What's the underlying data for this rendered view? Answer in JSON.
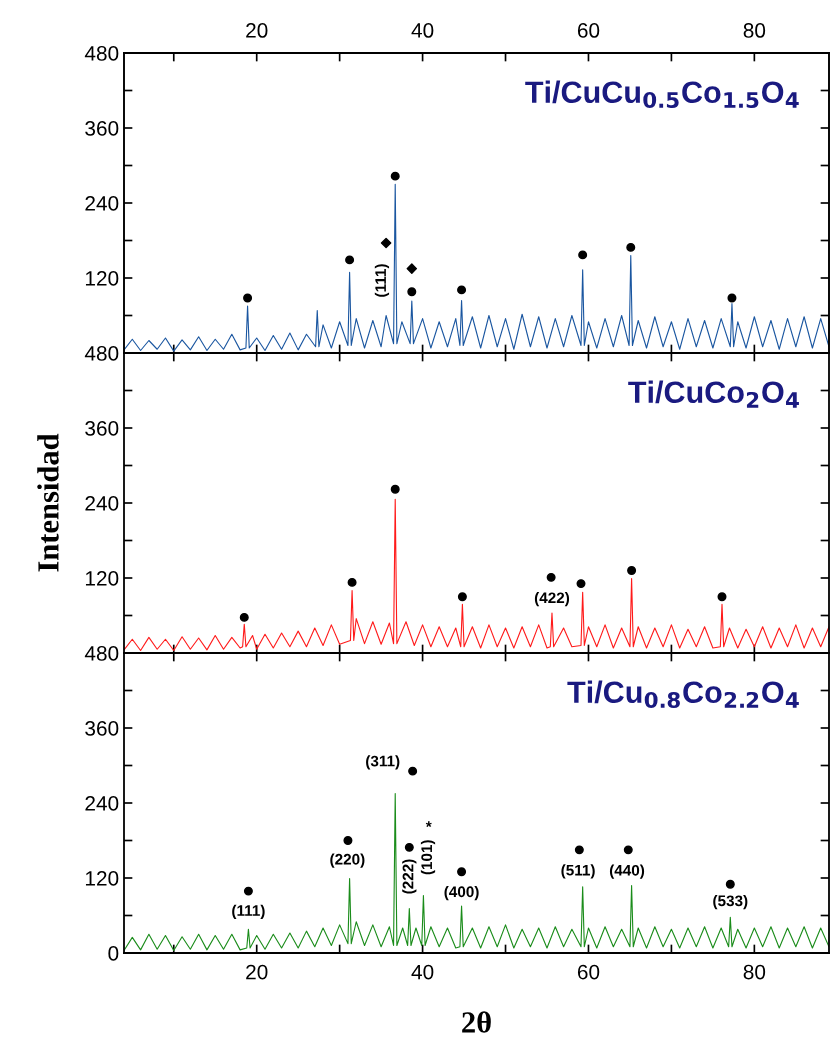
{
  "chart_data": [
    {
      "type": "line",
      "title": "Ti/CuCu$_{0.5}$Co$_{1.5}$O$_{4}$",
      "xlim": [
        4,
        89
      ],
      "x2lim": [
        4,
        89
      ],
      "x2ticks": [
        {
          "value": 10,
          "label": null
        },
        20,
        {
          "value": 30,
          "label": null
        },
        40,
        {
          "value": 50,
          "label": null
        },
        60,
        {
          "value": 70,
          "label": null
        },
        80
      ],
      "xticks": [
        {
          "value": 10,
          "label": null
        },
        {
          "value": 20,
          "label": null
        },
        {
          "value": 30,
          "label": null
        },
        {
          "value": 40,
          "label": null
        },
        {
          "value": 50,
          "label": null
        },
        {
          "value": 60,
          "label": null
        },
        {
          "value": 70,
          "label": null
        },
        {
          "value": 80,
          "label": null
        }
      ],
      "ylim": [
        0,
        480
      ],
      "yticks": [
        {
          "value": 0,
          "label": null
        },
        {
          "value": 60,
          "label": null
        },
        120,
        {
          "value": 180,
          "label": null
        },
        240,
        {
          "value": 300,
          "label": null
        },
        360,
        {
          "value": 420,
          "label": null
        },
        480
      ],
      "tick_labels": "y",
      "grid": false,
      "annotations": [
        {
          "text": "(111)",
          "x": 35.6,
          "y": 176
        }
      ],
      "series": [
        {
          "color": "#1a56a0",
          "x": [
            4,
            5,
            6,
            7,
            8,
            9,
            10,
            11,
            12,
            13,
            14,
            15,
            16,
            17,
            18,
            18.7,
            18.9,
            19.1,
            20,
            21,
            22,
            23,
            24,
            25,
            26,
            27.1,
            27.3,
            27.5,
            28,
            29,
            30,
            31.0,
            31.2,
            31.4,
            32,
            33,
            34,
            35,
            35.6,
            36.5,
            36.7,
            36.9,
            37.5,
            38.5,
            38.7,
            38.9,
            40,
            41,
            42,
            43,
            44,
            44.5,
            44.7,
            44.9,
            46,
            47,
            48,
            49,
            50,
            51,
            52,
            53,
            54,
            55,
            56,
            57,
            58,
            59.1,
            59.3,
            59.5,
            60,
            61,
            62,
            63,
            64,
            64.9,
            65.1,
            65.3,
            66,
            67,
            68,
            69,
            70,
            71,
            72,
            73,
            74,
            75,
            76,
            77.1,
            77.3,
            77.5,
            78,
            79,
            80,
            81,
            82,
            83,
            84,
            85,
            86,
            87,
            88,
            89
          ],
          "values": [
            5,
            22,
            4,
            20,
            6,
            24,
            3,
            21,
            5,
            26,
            4,
            22,
            6,
            30,
            5,
            8,
            75,
            8,
            24,
            4,
            28,
            6,
            32,
            5,
            30,
            10,
            68,
            10,
            45,
            8,
            50,
            12,
            129,
            12,
            55,
            8,
            52,
            10,
            60,
            15,
            270,
            15,
            50,
            15,
            83,
            15,
            55,
            8,
            50,
            10,
            55,
            12,
            84,
            12,
            58,
            8,
            60,
            10,
            55,
            6,
            62,
            10,
            58,
            8,
            55,
            10,
            60,
            12,
            133,
            12,
            50,
            8,
            55,
            10,
            60,
            12,
            156,
            12,
            52,
            8,
            58,
            10,
            50,
            6,
            55,
            10,
            52,
            8,
            55,
            10,
            79,
            10,
            50,
            8,
            58,
            10,
            52,
            6,
            55,
            10,
            58,
            8,
            55,
            10
          ]
        },
        {
          "type": "scatter",
          "marker": "circle",
          "color": "#000000",
          "x": [
            18.9,
            31.2,
            36.7,
            38.7,
            44.7,
            59.3,
            65.1,
            77.3
          ],
          "values": [
            88,
            149,
            283,
            98,
            101,
            157,
            169,
            88
          ]
        },
        {
          "type": "scatter",
          "marker": "diamond",
          "color": "#000000",
          "x": [
            35.6,
            38.7
          ],
          "values": [
            176,
            135
          ]
        }
      ]
    },
    {
      "type": "line",
      "title": "Ti/CuCo$_{2}$O$_{4}$",
      "ylabel": "Intensidad",
      "xlim": [
        4,
        89
      ],
      "xticks": [
        {
          "value": 10,
          "label": null
        },
        {
          "value": 20,
          "label": null
        },
        {
          "value": 30,
          "label": null
        },
        {
          "value": 40,
          "label": null
        },
        {
          "value": 50,
          "label": null
        },
        {
          "value": 60,
          "label": null
        },
        {
          "value": 70,
          "label": null
        },
        {
          "value": 80,
          "label": null
        }
      ],
      "ylim": [
        0,
        480
      ],
      "yticks": [
        {
          "value": 0,
          "label": null
        },
        {
          "value": 60,
          "label": null
        },
        120,
        {
          "value": 180,
          "label": null
        },
        240,
        {
          "value": 300,
          "label": null
        },
        360,
        {
          "value": 420,
          "label": null
        },
        480
      ],
      "tick_labels": "y",
      "grid": false,
      "annotations": [
        {
          "text": "(422)",
          "x": 55.6,
          "y": 64
        }
      ],
      "series": [
        {
          "color": "#ff1a1a",
          "x": [
            4,
            5,
            6,
            7,
            8,
            9,
            10,
            11,
            12,
            13,
            14,
            15,
            16,
            17,
            18,
            18.3,
            18.5,
            18.7,
            19.5,
            20,
            21,
            22,
            23,
            24,
            25,
            26,
            27,
            28,
            29,
            30,
            31.3,
            31.5,
            31.7,
            32,
            33,
            34,
            35,
            36,
            36.5,
            36.7,
            36.9,
            38,
            39,
            40,
            41,
            42,
            43,
            44,
            44.6,
            44.8,
            45.0,
            46,
            47,
            48,
            49,
            50,
            51,
            52,
            53,
            54,
            55,
            55.4,
            55.6,
            55.8,
            57,
            58,
            59.1,
            59.3,
            59.5,
            60,
            61,
            62,
            63,
            64,
            65.0,
            65.2,
            65.4,
            66,
            67,
            68,
            69,
            70,
            71,
            72,
            73,
            74,
            75,
            75.9,
            76.1,
            76.3,
            77,
            78,
            79,
            80,
            81,
            82,
            83,
            84,
            85,
            86,
            87,
            88,
            89
          ],
          "values": [
            5,
            22,
            4,
            25,
            6,
            22,
            4,
            26,
            6,
            24,
            5,
            28,
            6,
            25,
            8,
            10,
            46,
            10,
            28,
            6,
            30,
            8,
            32,
            10,
            35,
            10,
            40,
            12,
            45,
            14,
            20,
            100,
            20,
            55,
            15,
            50,
            14,
            48,
            15,
            246,
            15,
            50,
            12,
            45,
            10,
            42,
            10,
            40,
            10,
            78,
            10,
            42,
            8,
            45,
            10,
            40,
            8,
            42,
            10,
            45,
            8,
            10,
            64,
            10,
            40,
            10,
            12,
            97,
            12,
            42,
            10,
            45,
            8,
            40,
            10,
            119,
            10,
            42,
            8,
            40,
            10,
            45,
            8,
            38,
            10,
            42,
            8,
            10,
            78,
            10,
            40,
            8,
            38,
            10,
            42,
            8,
            40,
            10,
            45,
            8,
            40,
            10,
            42
          ]
        },
        {
          "type": "scatter",
          "marker": "circle",
          "color": "#000000",
          "x": [
            18.5,
            31.5,
            36.7,
            44.8,
            55.5,
            59.1,
            65.2,
            76.1
          ],
          "values": [
            57,
            113,
            262,
            90,
            121,
            111,
            132,
            90
          ]
        }
      ]
    },
    {
      "type": "line",
      "title": "Ti/Cu$_{0.8}$Co$_{2.2}$O$_{4}$",
      "xlabel": "2θ",
      "xlim": [
        4,
        89
      ],
      "xticks": [
        {
          "value": 10,
          "label": null
        },
        20,
        {
          "value": 30,
          "label": null
        },
        40,
        {
          "value": 50,
          "label": null
        },
        60,
        {
          "value": 70,
          "label": null
        },
        80
      ],
      "ylim": [
        0,
        480
      ],
      "yticks": [
        0,
        {
          "value": 60,
          "label": null
        },
        120,
        {
          "value": 180,
          "label": null
        },
        240,
        {
          "value": 300,
          "label": null
        },
        360,
        {
          "value": 420,
          "label": null
        },
        480
      ],
      "grid": false,
      "annotations": [
        {
          "text": "(111)",
          "x": 19.0,
          "y": 38
        },
        {
          "text": "(220)",
          "x": 31.2,
          "y": 119
        },
        {
          "text": "(311)",
          "x": 36.7,
          "y": 255
        },
        {
          "text": "(222)",
          "x": 38.4,
          "y": 169
        },
        {
          "text": "(101)",
          "x": 40.1,
          "y": 92
        },
        {
          "text": "*",
          "x": 38.4,
          "y": 169
        },
        {
          "text": "(400)",
          "x": 44.7,
          "y": 75
        },
        {
          "text": "(511)",
          "x": 59.3,
          "y": 106
        },
        {
          "text": "(440)",
          "x": 65.2,
          "y": 108
        },
        {
          "text": "(533)",
          "x": 77.1,
          "y": 57
        }
      ],
      "series": [
        {
          "color": "#1a8c1a",
          "x": [
            4,
            5,
            6,
            7,
            8,
            9,
            10,
            11,
            12,
            13,
            14,
            15,
            16,
            17,
            18,
            18.8,
            19.0,
            19.2,
            20,
            21,
            22,
            23,
            24,
            25,
            26,
            27,
            28,
            29,
            30,
            31.0,
            31.2,
            31.4,
            32,
            33,
            34,
            35,
            36,
            36.5,
            36.7,
            36.9,
            37.6,
            38.2,
            38.4,
            38.6,
            39.2,
            39.9,
            40.1,
            40.3,
            41,
            42,
            43,
            44,
            44.5,
            44.7,
            44.9,
            46,
            47,
            48,
            49,
            50,
            51,
            52,
            53,
            54,
            55,
            56,
            57,
            58,
            59.1,
            59.3,
            59.5,
            60,
            61,
            62,
            63,
            64,
            65.0,
            65.2,
            65.4,
            66,
            67,
            68,
            69,
            70,
            71,
            72,
            73,
            74,
            75,
            76,
            76.9,
            77.1,
            77.3,
            78,
            79,
            80,
            81,
            82,
            83,
            84,
            85,
            86,
            87,
            88,
            89
          ],
          "values": [
            4,
            25,
            5,
            30,
            6,
            28,
            4,
            26,
            6,
            30,
            5,
            28,
            6,
            30,
            5,
            8,
            38,
            8,
            28,
            6,
            30,
            8,
            32,
            8,
            35,
            10,
            40,
            12,
            45,
            15,
            119,
            15,
            50,
            12,
            45,
            10,
            42,
            12,
            255,
            12,
            40,
            12,
            71,
            12,
            40,
            12,
            92,
            12,
            42,
            10,
            40,
            8,
            10,
            75,
            10,
            40,
            8,
            42,
            10,
            45,
            8,
            38,
            10,
            40,
            8,
            42,
            10,
            38,
            10,
            106,
            10,
            40,
            8,
            42,
            10,
            38,
            10,
            108,
            10,
            40,
            8,
            42,
            10,
            38,
            8,
            40,
            10,
            42,
            8,
            40,
            10,
            57,
            10,
            38,
            8,
            40,
            10,
            42,
            8,
            40,
            10,
            42,
            8,
            40,
            10
          ]
        },
        {
          "type": "scatter",
          "marker": "circle",
          "color": "#000000",
          "x": [
            19.0,
            31.0,
            38.8,
            38.4,
            44.7,
            58.9,
            64.8,
            77.1
          ],
          "values": [
            99,
            180,
            291,
            169,
            130,
            165,
            165,
            110
          ]
        }
      ]
    }
  ]
}
